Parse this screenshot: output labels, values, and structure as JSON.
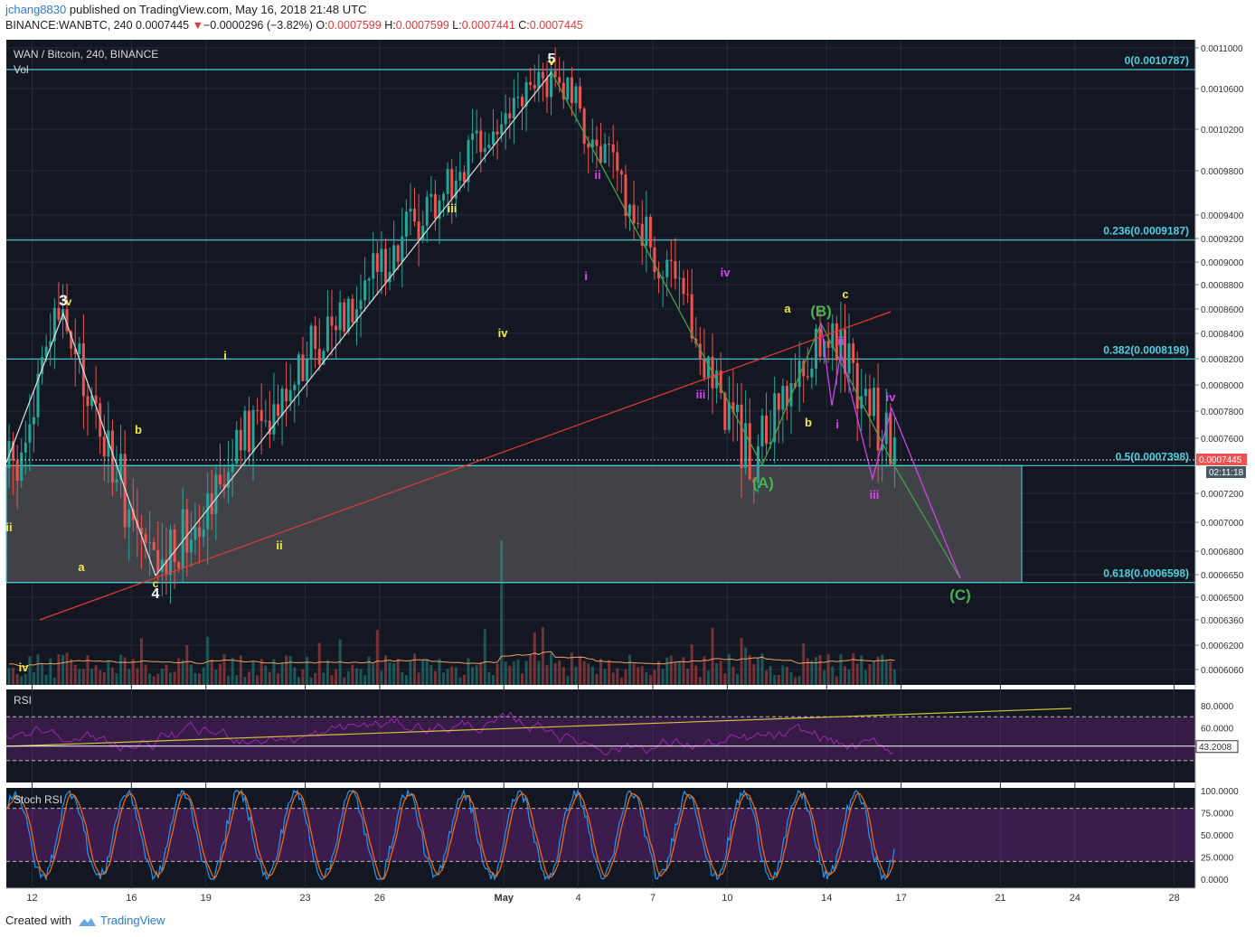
{
  "header": {
    "user": "jchang8830",
    "published_text": "published on TradingView.com, May 16, 2018 21:48 UTC",
    "symbol_line": "BINANCE:WANBTC, 240",
    "last": "0.0007445",
    "change_arrow": "▼",
    "change": "−0.0000296 (−3.82%)",
    "o_label": "O:",
    "o_val": "0.0007599",
    "h_label": "H:",
    "h_val": "0.0007599",
    "l_label": "L:",
    "l_val": "0.0007441",
    "c_label": "C:",
    "c_val": "0.0007445"
  },
  "footer": {
    "created_with": "Created with",
    "brand": "TradingView"
  },
  "colors": {
    "bg": "#131722",
    "grid": "#262b38",
    "fib": "#4dd0e1",
    "zone": "#4a4a4f",
    "bull": "#26a69a",
    "bear": "#ef5350",
    "white_line": "#e0e0e0",
    "green_line": "#43a047",
    "red_line": "#e53935",
    "magenta": "#e040fb",
    "yellow": "#f6e84a",
    "rsi": "#9c27b0",
    "stoch_k": "#2196f3",
    "stoch_d": "#ff6d00"
  },
  "chart_data": {
    "type": "candlestick",
    "title": "WAN / Bitcoin, 240, BINANCE",
    "volume_label": "Vol",
    "x_ticks": [
      "12",
      "16",
      "19",
      "23",
      "26",
      "May",
      "4",
      "7",
      "10",
      "14",
      "17",
      "21",
      "24",
      "28"
    ],
    "price_axis_ticks": [
      "0.0011000",
      "0.0010600",
      "0.0010200",
      "0.0009800",
      "0.0009400",
      "0.0009200",
      "0.0009000",
      "0.0008800",
      "0.0008600",
      "0.0008400",
      "0.0008200",
      "0.0008000",
      "0.0007800",
      "0.0007600",
      "0.0007200",
      "0.0007000",
      "0.0006800",
      "0.0006650",
      "0.0006500",
      "0.0006360",
      "0.0006200",
      "0.0006060"
    ],
    "last_price_label": "0.0007445",
    "countdown_label": "02:11:18",
    "fib_levels": [
      {
        "label": "0(0.0010787)",
        "value": 0.0010787
      },
      {
        "label": "0.236(0.0009187)",
        "value": 0.0009187
      },
      {
        "label": "0.382(0.0008198)",
        "value": 0.0008198
      },
      {
        "label": "0.5(0.0007398)",
        "value": 0.0007398
      },
      {
        "label": "0.618(0.0006598)",
        "value": 0.0006598
      }
    ],
    "price_path": [
      [
        "Apr 11 12:00",
        0.000738
      ],
      [
        "Apr 13",
        0.000858
      ],
      [
        "Apr 16 20:00",
        0.000662
      ],
      [
        "May 3",
        0.0010787
      ],
      [
        "May 11",
        0.000741
      ],
      [
        "May 14",
        0.000848
      ],
      [
        "May 16 20:00",
        0.0007445
      ]
    ],
    "wave_labels": [
      {
        "text": "3",
        "color": "white"
      },
      {
        "text": "v",
        "color": "yellow"
      },
      {
        "text": "4",
        "color": "white"
      },
      {
        "text": "c",
        "color": "yellow"
      },
      {
        "text": "5",
        "color": "white"
      },
      {
        "text": "v",
        "color": "yellow"
      },
      {
        "text": "ii",
        "color": "yellow"
      },
      {
        "text": "iv",
        "color": "yellow"
      },
      {
        "text": "a",
        "color": "yellow"
      },
      {
        "text": "b",
        "color": "yellow"
      },
      {
        "text": "i",
        "color": "yellow"
      },
      {
        "text": "ii",
        "color": "yellow"
      },
      {
        "text": "iii",
        "color": "yellow"
      },
      {
        "text": "iv",
        "color": "yellow"
      },
      {
        "text": "ii",
        "color": "magenta"
      },
      {
        "text": "i",
        "color": "magenta"
      },
      {
        "text": "iii",
        "color": "magenta"
      },
      {
        "text": "iv",
        "color": "magenta"
      },
      {
        "text": "a",
        "color": "yellow"
      },
      {
        "text": "b",
        "color": "yellow"
      },
      {
        "text": "c",
        "color": "yellow"
      },
      {
        "text": "(A)",
        "color": "green"
      },
      {
        "text": "(B)",
        "color": "green"
      },
      {
        "text": "(C)",
        "color": "green"
      },
      {
        "text": "ii",
        "color": "magenta"
      },
      {
        "text": "i",
        "color": "magenta"
      },
      {
        "text": "iii",
        "color": "magenta"
      },
      {
        "text": "iv",
        "color": "magenta"
      }
    ],
    "rsi": {
      "label": "RSI",
      "ticks": [
        "80.0000",
        "60.0000"
      ],
      "current_label": "43.2008",
      "current": 43.2008,
      "upper": 70,
      "lower": 30
    },
    "stoch_rsi": {
      "label": "Stoch RSI",
      "ticks": [
        "100.0000",
        "75.0000",
        "50.0000",
        "25.0000",
        "0.0000"
      ],
      "upper": 80,
      "lower": 20
    }
  }
}
